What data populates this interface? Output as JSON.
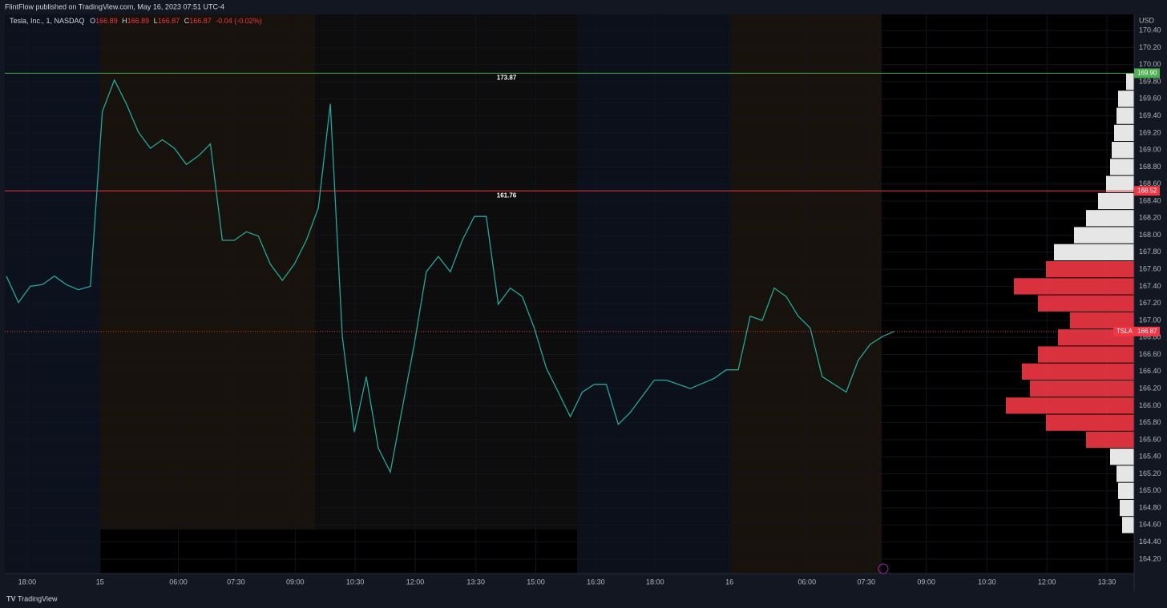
{
  "header": {
    "title": "FlintFlow published on TradingView.com, May 16, 2023 07:51 UTC-4"
  },
  "legend": {
    "symbol": "Tesla, Inc., 1, NASDAQ",
    "open_label": "O",
    "open": "166.89",
    "high_label": "H",
    "high": "166.89",
    "low_label": "L",
    "low": "166.87",
    "close_label": "C",
    "close": "166.87",
    "change": "-0.04 (-0.02%)"
  },
  "footer": {
    "brand": "TradingView"
  },
  "chart_data": {
    "type": "line",
    "currency": "USD",
    "series": [
      {
        "color": "#26a69a",
        "values": [
          167.52,
          167.21,
          167.4,
          167.42,
          167.52,
          167.42,
          167.36,
          167.4,
          169.45,
          169.82,
          169.54,
          169.21,
          169.02,
          169.12,
          169.02,
          168.83,
          168.93,
          169.07,
          167.94,
          167.94,
          168.04,
          167.99,
          167.66,
          167.47,
          167.66,
          167.94,
          168.32,
          169.54,
          166.81,
          165.69,
          166.34,
          165.5,
          165.22,
          165.97,
          166.72,
          167.57,
          167.75,
          167.57,
          167.94,
          168.22,
          168.22,
          167.19,
          167.38,
          167.28,
          166.91,
          166.44,
          166.16,
          165.87,
          166.16,
          166.25,
          166.25,
          165.78,
          165.92,
          166.11,
          166.3,
          166.3,
          166.25,
          166.2,
          166.26,
          166.32,
          166.42,
          166.42,
          167.05,
          167.0,
          167.38,
          167.28,
          167.05,
          166.91,
          166.34,
          166.25,
          166.16,
          166.53,
          166.72,
          166.81,
          166.87
        ]
      }
    ],
    "xlim": [
      0,
      94
    ],
    "xticks": [
      {
        "value": 1.73,
        "label": "18:00"
      },
      {
        "value": 7.8,
        "label": "15"
      },
      {
        "value": 14.33,
        "label": "06:00"
      },
      {
        "value": 19.13,
        "label": "07:30"
      },
      {
        "value": 24.07,
        "label": "09:00"
      },
      {
        "value": 29.07,
        "label": "10:30"
      },
      {
        "value": 34.07,
        "label": "12:00"
      },
      {
        "value": 39.13,
        "label": "13:30"
      },
      {
        "value": 44.13,
        "label": "15:00"
      },
      {
        "value": 49.13,
        "label": "16:30"
      },
      {
        "value": 54.07,
        "label": "18:00"
      },
      {
        "value": 60.27,
        "label": "16"
      },
      {
        "value": 66.73,
        "label": "06:00"
      },
      {
        "value": 71.67,
        "label": "07:30"
      },
      {
        "value": 76.67,
        "label": "09:00"
      },
      {
        "value": 81.73,
        "label": "10:30"
      },
      {
        "value": 86.73,
        "label": "12:00"
      },
      {
        "value": 91.73,
        "label": "13:30"
      }
    ],
    "ylim": [
      164.03,
      170.59
    ],
    "yticks": [
      {
        "value": 164.2,
        "label": "164.20"
      },
      {
        "value": 164.4,
        "label": "164.40"
      },
      {
        "value": 164.6,
        "label": "164.60"
      },
      {
        "value": 164.8,
        "label": "164.80"
      },
      {
        "value": 165.0,
        "label": "165.00"
      },
      {
        "value": 165.2,
        "label": "165.20"
      },
      {
        "value": 165.4,
        "label": "165.40"
      },
      {
        "value": 165.6,
        "label": "165.60"
      },
      {
        "value": 165.8,
        "label": "165.80"
      },
      {
        "value": 166.0,
        "label": "166.00"
      },
      {
        "value": 166.2,
        "label": "166.20"
      },
      {
        "value": 166.4,
        "label": "166.40"
      },
      {
        "value": 166.6,
        "label": "166.60"
      },
      {
        "value": 166.8,
        "label": "166.80"
      },
      {
        "value": 167.0,
        "label": "167.00"
      },
      {
        "value": 167.2,
        "label": "167.20"
      },
      {
        "value": 167.4,
        "label": "167.40"
      },
      {
        "value": 167.6,
        "label": "167.60"
      },
      {
        "value": 167.8,
        "label": "167.80"
      },
      {
        "value": 168.0,
        "label": "168.00"
      },
      {
        "value": 168.2,
        "label": "168.20"
      },
      {
        "value": 168.4,
        "label": "168.40"
      },
      {
        "value": 168.6,
        "label": "168.60"
      },
      {
        "value": 168.8,
        "label": "168.80"
      },
      {
        "value": 169.0,
        "label": "169.00"
      },
      {
        "value": 169.2,
        "label": "169.20"
      },
      {
        "value": 169.4,
        "label": "169.40"
      },
      {
        "value": 169.6,
        "label": "169.60"
      },
      {
        "value": 169.8,
        "label": "169.80"
      },
      {
        "value": 170.0,
        "label": "170.00"
      },
      {
        "value": 170.2,
        "label": "170.20"
      },
      {
        "value": 170.4,
        "label": "170.40"
      }
    ],
    "grid": true,
    "hlines": [
      {
        "value": 169.9,
        "label": "169.90",
        "color": "#4caf50",
        "annotation": "173.87"
      },
      {
        "value": 168.52,
        "label": "168.52",
        "color": "#f23645",
        "annotation": "161.76"
      }
    ],
    "last_price": {
      "value": 166.87,
      "label": "166.87",
      "symbol": "TSLA",
      "color": "#f23645"
    },
    "volume_profile": {
      "prices": [
        164.6,
        164.8,
        165.0,
        165.2,
        165.4,
        165.6,
        165.8,
        166.0,
        166.2,
        166.4,
        166.6,
        166.8,
        167.0,
        167.2,
        167.4,
        167.6,
        167.8,
        168.0,
        168.2,
        168.4,
        168.6,
        168.8,
        169.0,
        169.2,
        169.4,
        169.6,
        169.8
      ],
      "values": [
        15,
        18,
        20,
        22,
        30,
        60,
        110,
        160,
        130,
        140,
        120,
        95,
        80,
        120,
        150,
        110,
        100,
        75,
        60,
        45,
        35,
        30,
        28,
        25,
        22,
        20,
        10
      ],
      "colors": [
        "#ffffff",
        "#ffffff",
        "#ffffff",
        "#ffffff",
        "#ffffff",
        "#f23645",
        "#f23645",
        "#f23645",
        "#f23645",
        "#f23645",
        "#f23645",
        "#f23645",
        "#f23645",
        "#f23645",
        "#f23645",
        "#f23645",
        "#ffffff",
        "#ffffff",
        "#ffffff",
        "#ffffff",
        "#ffffff",
        "#ffffff",
        "#ffffff",
        "#ffffff",
        "#ffffff",
        "#ffffff",
        "#ffffff"
      ]
    }
  }
}
